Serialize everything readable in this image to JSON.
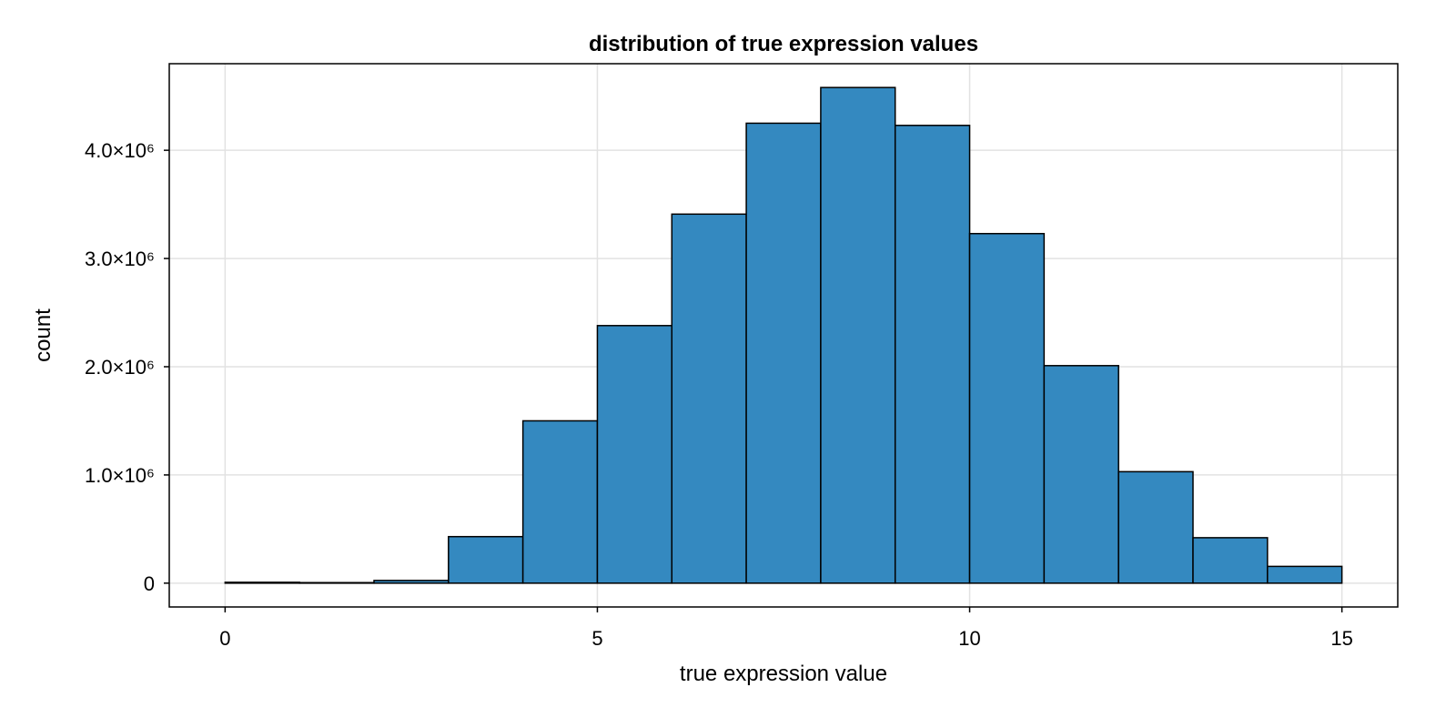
{
  "chart_data": {
    "type": "bar",
    "title": "distribution of true expression values",
    "xlabel": "true expression value",
    "ylabel": "count",
    "bar_color": "#3489c0",
    "bin_width": 1,
    "bins": [
      {
        "start": 0,
        "end": 1,
        "count": 8000
      },
      {
        "start": 1,
        "end": 2,
        "count": 5000
      },
      {
        "start": 2,
        "end": 3,
        "count": 25000
      },
      {
        "start": 3,
        "end": 4,
        "count": 430000
      },
      {
        "start": 4,
        "end": 5,
        "count": 1500000
      },
      {
        "start": 5,
        "end": 6,
        "count": 2380000
      },
      {
        "start": 6,
        "end": 7,
        "count": 3410000
      },
      {
        "start": 7,
        "end": 8,
        "count": 4250000
      },
      {
        "start": 8,
        "end": 9,
        "count": 4580000
      },
      {
        "start": 9,
        "end": 10,
        "count": 4230000
      },
      {
        "start": 10,
        "end": 11,
        "count": 3230000
      },
      {
        "start": 11,
        "end": 12,
        "count": 2010000
      },
      {
        "start": 12,
        "end": 13,
        "count": 1030000
      },
      {
        "start": 13,
        "end": 14,
        "count": 420000
      },
      {
        "start": 14,
        "end": 15,
        "count": 155000
      }
    ],
    "xlim": [
      -0.75,
      15.75
    ],
    "ylim": [
      -220000,
      4800000
    ],
    "xticks": [
      {
        "value": 0,
        "label": "0"
      },
      {
        "value": 5,
        "label": "5"
      },
      {
        "value": 10,
        "label": "10"
      },
      {
        "value": 15,
        "label": "15"
      }
    ],
    "yticks": [
      {
        "value": 0,
        "label": "0"
      },
      {
        "value": 1000000,
        "label": "1.0×10⁶"
      },
      {
        "value": 2000000,
        "label": "2.0×10⁶"
      },
      {
        "value": 3000000,
        "label": "3.0×10⁶"
      },
      {
        "value": 4000000,
        "label": "4.0×10⁶"
      }
    ],
    "grid": true,
    "legend": "none"
  }
}
